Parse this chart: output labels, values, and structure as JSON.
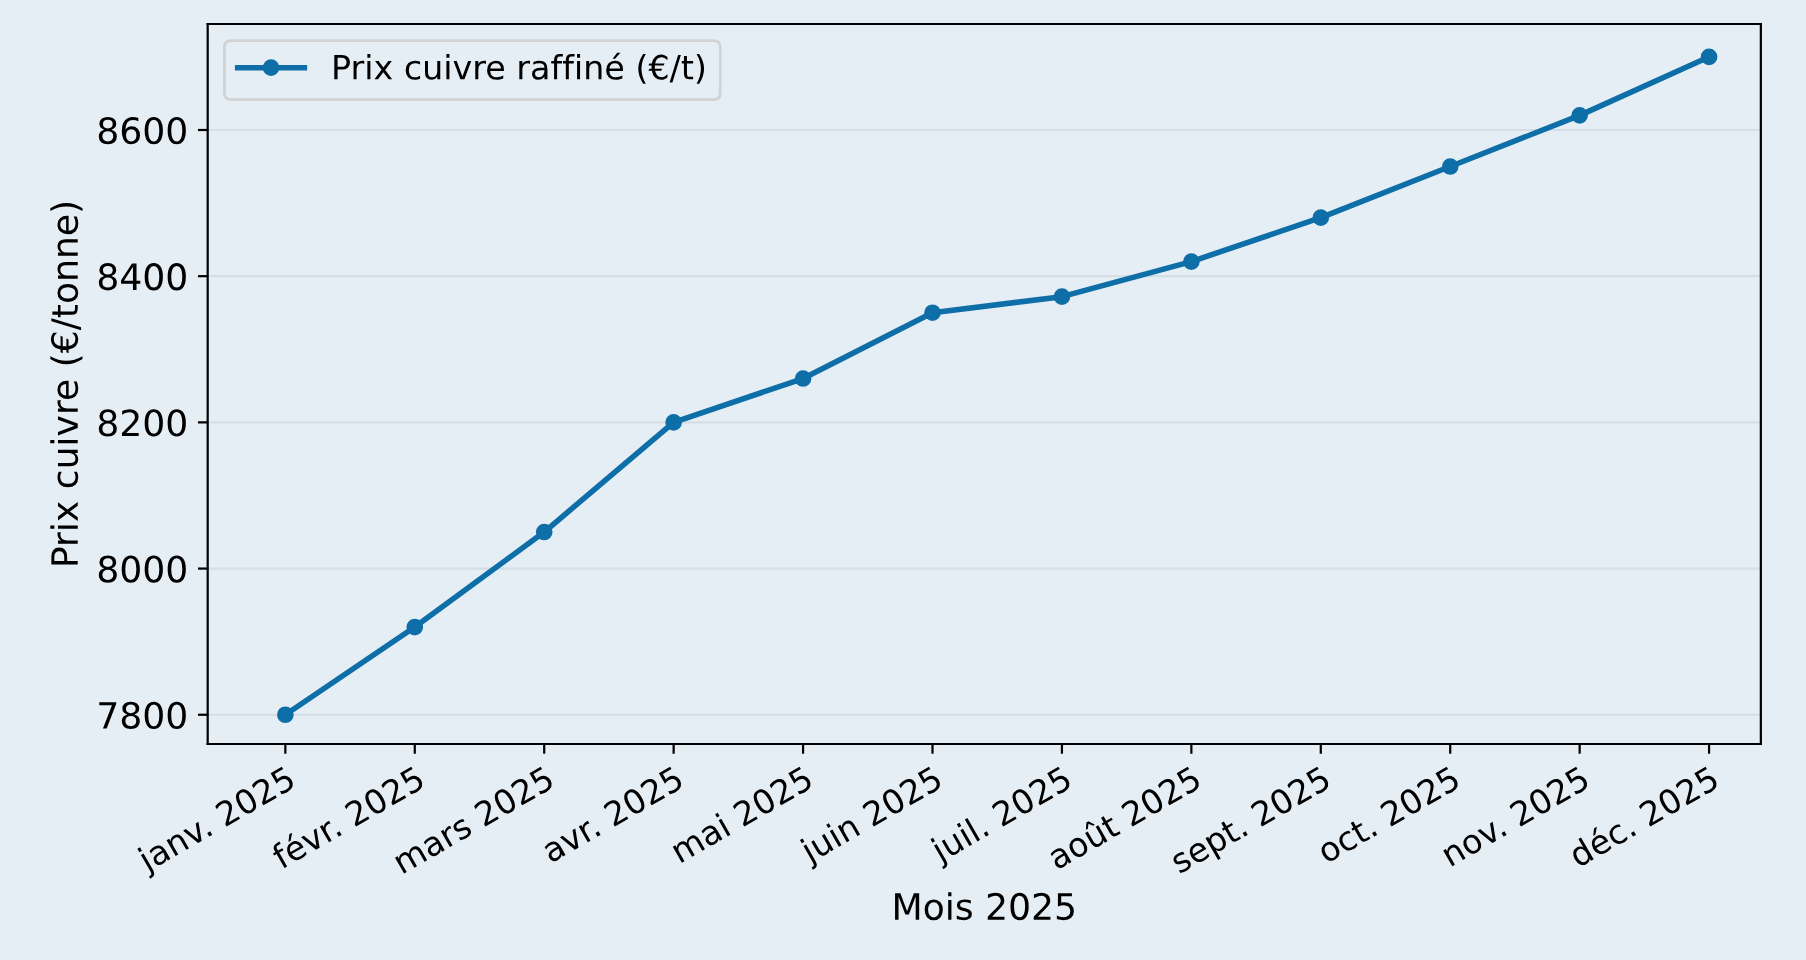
{
  "chart_data": {
    "type": "line",
    "xlabel": "Mois 2025",
    "ylabel": "Prix cuivre (€/tonne)",
    "categories": [
      "janv. 2025",
      "févr. 2025",
      "mars 2025",
      "avr. 2025",
      "mai 2025",
      "juin 2025",
      "juil. 2025",
      "août 2025",
      "sept. 2025",
      "oct. 2025",
      "nov. 2025",
      "déc. 2025"
    ],
    "series": [
      {
        "name": "Prix cuivre raffiné (€/t)",
        "color": "#0e6ea8",
        "values": [
          7800,
          7920,
          8050,
          8200,
          8260,
          8350,
          8372,
          8420,
          8480,
          8550,
          8620,
          8700
        ]
      }
    ],
    "ylim": [
      7760,
      8745
    ],
    "yticks": [
      7800,
      8000,
      8200,
      8400,
      8600
    ],
    "grid": "y",
    "legend": "top left",
    "marker": "circle",
    "line_style": "solid"
  }
}
